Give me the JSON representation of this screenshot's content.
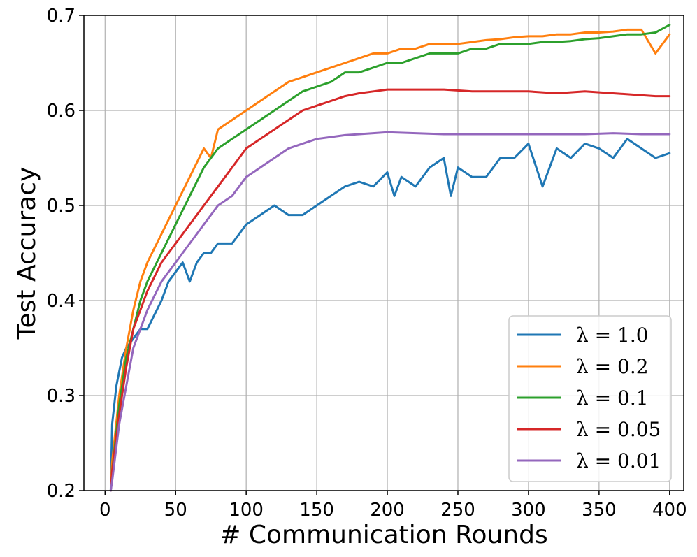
{
  "chart_data": {
    "type": "line",
    "title": "",
    "xlabel": "# Communication Rounds",
    "ylabel": "Test Accuracy",
    "xlim": [
      -15,
      410
    ],
    "ylim": [
      0.2,
      0.7
    ],
    "xticks": [
      0,
      50,
      100,
      150,
      200,
      250,
      300,
      350,
      400
    ],
    "xtick_labels": [
      "0",
      "50",
      "100",
      "150",
      "200",
      "250",
      "300",
      "350",
      "400"
    ],
    "yticks": [
      0.2,
      0.3,
      0.4,
      0.5,
      0.6,
      0.7
    ],
    "ytick_labels": [
      "0.2",
      "0.3",
      "0.4",
      "0.5",
      "0.6",
      "0.7"
    ],
    "grid": true,
    "legend_position": "bottom-right",
    "series": [
      {
        "name": "λ = 1.0",
        "color": "#1f77b4",
        "x": [
          4,
          5,
          8,
          12,
          15,
          20,
          25,
          30,
          35,
          40,
          45,
          50,
          55,
          60,
          65,
          70,
          75,
          80,
          85,
          90,
          95,
          100,
          110,
          120,
          130,
          140,
          150,
          160,
          170,
          180,
          190,
          200,
          205,
          210,
          220,
          230,
          240,
          245,
          250,
          260,
          270,
          280,
          290,
          300,
          310,
          320,
          330,
          340,
          350,
          360,
          370,
          380,
          390,
          400
        ],
        "y": [
          0.2,
          0.27,
          0.31,
          0.34,
          0.35,
          0.36,
          0.37,
          0.37,
          0.385,
          0.4,
          0.42,
          0.43,
          0.44,
          0.42,
          0.44,
          0.45,
          0.45,
          0.46,
          0.46,
          0.46,
          0.47,
          0.48,
          0.49,
          0.5,
          0.49,
          0.49,
          0.5,
          0.51,
          0.52,
          0.525,
          0.52,
          0.535,
          0.51,
          0.53,
          0.52,
          0.54,
          0.55,
          0.51,
          0.54,
          0.53,
          0.53,
          0.55,
          0.55,
          0.565,
          0.52,
          0.56,
          0.55,
          0.565,
          0.56,
          0.55,
          0.57,
          0.56,
          0.55,
          0.555
        ]
      },
      {
        "name": "λ = 0.2",
        "color": "#ff7f0e",
        "x": [
          4,
          5,
          10,
          15,
          20,
          25,
          30,
          40,
          50,
          60,
          70,
          75,
          80,
          90,
          100,
          110,
          120,
          130,
          140,
          150,
          160,
          170,
          180,
          190,
          200,
          210,
          220,
          230,
          240,
          250,
          260,
          270,
          280,
          290,
          300,
          310,
          320,
          330,
          340,
          350,
          360,
          370,
          380,
          390,
          400
        ],
        "y": [
          0.2,
          0.23,
          0.3,
          0.35,
          0.39,
          0.42,
          0.44,
          0.47,
          0.5,
          0.53,
          0.56,
          0.55,
          0.58,
          0.59,
          0.6,
          0.61,
          0.62,
          0.63,
          0.635,
          0.64,
          0.645,
          0.65,
          0.655,
          0.66,
          0.66,
          0.665,
          0.665,
          0.67,
          0.67,
          0.67,
          0.672,
          0.674,
          0.675,
          0.677,
          0.678,
          0.678,
          0.68,
          0.68,
          0.682,
          0.682,
          0.683,
          0.685,
          0.685,
          0.66,
          0.68
        ]
      },
      {
        "name": "λ = 0.1",
        "color": "#2ca02c",
        "x": [
          4,
          5,
          10,
          15,
          20,
          25,
          30,
          40,
          50,
          60,
          70,
          80,
          90,
          100,
          110,
          120,
          130,
          140,
          150,
          160,
          170,
          180,
          190,
          200,
          210,
          220,
          230,
          240,
          250,
          260,
          270,
          280,
          290,
          300,
          310,
          320,
          330,
          340,
          350,
          360,
          370,
          380,
          390,
          400
        ],
        "y": [
          0.2,
          0.22,
          0.29,
          0.34,
          0.37,
          0.4,
          0.42,
          0.45,
          0.48,
          0.51,
          0.54,
          0.56,
          0.57,
          0.58,
          0.59,
          0.6,
          0.61,
          0.62,
          0.625,
          0.63,
          0.64,
          0.64,
          0.645,
          0.65,
          0.65,
          0.655,
          0.66,
          0.66,
          0.66,
          0.665,
          0.665,
          0.67,
          0.67,
          0.67,
          0.672,
          0.672,
          0.673,
          0.675,
          0.676,
          0.678,
          0.68,
          0.68,
          0.682,
          0.69
        ]
      },
      {
        "name": "λ = 0.05",
        "color": "#d62728",
        "x": [
          4,
          5,
          10,
          15,
          20,
          25,
          30,
          40,
          50,
          60,
          70,
          80,
          90,
          100,
          110,
          120,
          130,
          140,
          150,
          160,
          170,
          180,
          190,
          200,
          220,
          240,
          260,
          280,
          300,
          320,
          340,
          360,
          380,
          390,
          400
        ],
        "y": [
          0.2,
          0.22,
          0.28,
          0.33,
          0.37,
          0.39,
          0.41,
          0.44,
          0.46,
          0.48,
          0.5,
          0.52,
          0.54,
          0.56,
          0.57,
          0.58,
          0.59,
          0.6,
          0.605,
          0.61,
          0.615,
          0.618,
          0.62,
          0.622,
          0.622,
          0.622,
          0.62,
          0.62,
          0.62,
          0.618,
          0.62,
          0.618,
          0.616,
          0.615,
          0.615
        ]
      },
      {
        "name": "λ = 0.01",
        "color": "#9467bd",
        "x": [
          4,
          5,
          10,
          15,
          20,
          25,
          30,
          40,
          50,
          60,
          70,
          80,
          90,
          100,
          110,
          120,
          130,
          140,
          150,
          160,
          170,
          180,
          190,
          200,
          220,
          240,
          260,
          280,
          300,
          320,
          340,
          360,
          380,
          400
        ],
        "y": [
          0.2,
          0.21,
          0.27,
          0.31,
          0.35,
          0.37,
          0.39,
          0.42,
          0.44,
          0.46,
          0.48,
          0.5,
          0.51,
          0.53,
          0.54,
          0.55,
          0.56,
          0.565,
          0.57,
          0.572,
          0.574,
          0.575,
          0.576,
          0.577,
          0.576,
          0.575,
          0.575,
          0.575,
          0.575,
          0.575,
          0.575,
          0.576,
          0.575,
          0.575
        ]
      }
    ]
  }
}
